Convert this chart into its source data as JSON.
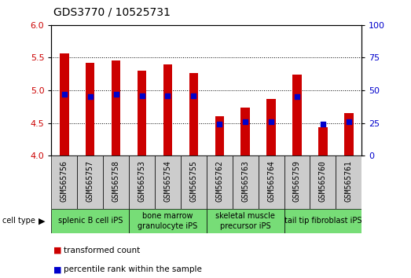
{
  "title": "GDS3770 / 10525731",
  "samples": [
    "GSM565756",
    "GSM565757",
    "GSM565758",
    "GSM565753",
    "GSM565754",
    "GSM565755",
    "GSM565762",
    "GSM565763",
    "GSM565764",
    "GSM565759",
    "GSM565760",
    "GSM565761"
  ],
  "transformed_count": [
    5.57,
    5.42,
    5.46,
    5.3,
    5.4,
    5.27,
    4.6,
    4.74,
    4.87,
    5.24,
    4.43,
    4.65
  ],
  "percentile_rank": [
    47,
    45,
    47,
    46,
    46,
    46,
    24,
    26,
    26,
    45,
    24,
    26
  ],
  "cell_types": [
    {
      "label": "splenic B cell iPS",
      "start": 0,
      "end": 3
    },
    {
      "label": "bone marrow\ngranulocyte iPS",
      "start": 3,
      "end": 6
    },
    {
      "label": "skeletal muscle\nprecursor iPS",
      "start": 6,
      "end": 9
    },
    {
      "label": "tail tip fibroblast iPS",
      "start": 9,
      "end": 12
    }
  ],
  "ylim_left": [
    4,
    6
  ],
  "ylim_right": [
    0,
    100
  ],
  "yticks_left": [
    4,
    4.5,
    5,
    5.5,
    6
  ],
  "yticks_right": [
    0,
    25,
    50,
    75,
    100
  ],
  "bar_color": "#cc0000",
  "dot_color": "#0000cc",
  "cell_type_bg": "#77dd77",
  "sample_bg": "#cccccc",
  "bar_bottom": 4.0,
  "dot_size": 22,
  "bar_width": 0.35,
  "title_fontsize": 10,
  "label_fontsize": 7,
  "legend_fontsize": 7.5
}
